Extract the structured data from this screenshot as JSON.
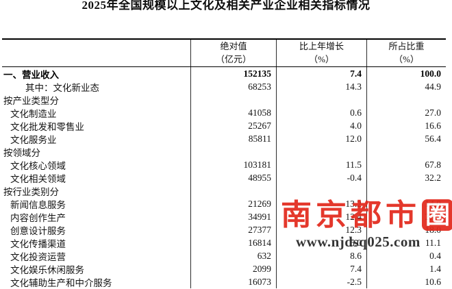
{
  "page": {
    "title": "2025年全国规模以上文化及相关产业企业相关指标情况"
  },
  "table": {
    "columns": [
      {
        "line1": "绝对值",
        "line2": "（亿元）"
      },
      {
        "line1": "比上年增长",
        "line2": "（%）"
      },
      {
        "line1": "所占比重",
        "line2": "（%）"
      }
    ],
    "rows": [
      {
        "label": "一、营业收入",
        "indent": 0,
        "bold": true,
        "values": [
          "152135",
          "7.4",
          "100.0"
        ]
      },
      {
        "label": "其中：文化新业态",
        "indent": 2,
        "bold": false,
        "values": [
          "68253",
          "14.3",
          "44.9"
        ]
      },
      {
        "label": "按产业类型分",
        "indent": 0,
        "bold": false,
        "values": [
          "",
          "",
          ""
        ]
      },
      {
        "label": "文化制造业",
        "indent": 1,
        "bold": false,
        "values": [
          "41058",
          "0.6",
          "27.0"
        ]
      },
      {
        "label": "文化批发和零售业",
        "indent": 1,
        "bold": false,
        "values": [
          "25267",
          "4.0",
          "16.6"
        ]
      },
      {
        "label": "文化服务业",
        "indent": 1,
        "bold": false,
        "values": [
          "85811",
          "12.0",
          "56.4"
        ]
      },
      {
        "label": "按领域分",
        "indent": 0,
        "bold": false,
        "values": [
          "",
          "",
          ""
        ]
      },
      {
        "label": "文化核心领域",
        "indent": 1,
        "bold": false,
        "values": [
          "103181",
          "11.5",
          "67.8"
        ]
      },
      {
        "label": "文化相关领域",
        "indent": 1,
        "bold": false,
        "values": [
          "48955",
          "-0.4",
          "32.2"
        ]
      },
      {
        "label": "按行业类别分",
        "indent": 0,
        "bold": false,
        "values": [
          "",
          "",
          ""
        ]
      },
      {
        "label": "新闻信息服务",
        "indent": 1,
        "bold": false,
        "values": [
          "21269",
          "13.2",
          "14.0"
        ]
      },
      {
        "label": "内容创作生产",
        "indent": 1,
        "bold": false,
        "values": [
          "34991",
          "12.4",
          "23.0"
        ]
      },
      {
        "label": "创意设计服务",
        "indent": 1,
        "bold": false,
        "values": [
          "27377",
          "12.3",
          "18.0"
        ]
      },
      {
        "label": "文化传播渠道",
        "indent": 1,
        "bold": false,
        "values": [
          "16814",
          "5.0",
          "11.1"
        ]
      },
      {
        "label": "文化投资运营",
        "indent": 1,
        "bold": false,
        "values": [
          "632",
          "8.6",
          "0.4"
        ]
      },
      {
        "label": "文化娱乐休闲服务",
        "indent": 1,
        "bold": false,
        "values": [
          "2099",
          "7.4",
          "1.4"
        ]
      },
      {
        "label": "文化辅助生产和中介服务",
        "indent": 1,
        "bold": false,
        "values": [
          "16073",
          "-2.5",
          "10.6"
        ]
      }
    ]
  },
  "watermark": {
    "seal_text": "南京都市",
    "seal_boxed_char": "圈",
    "seal_color": "#e32a1d",
    "url_text": "www.njdsq025.com",
    "url_color": "#2b2b2b"
  }
}
